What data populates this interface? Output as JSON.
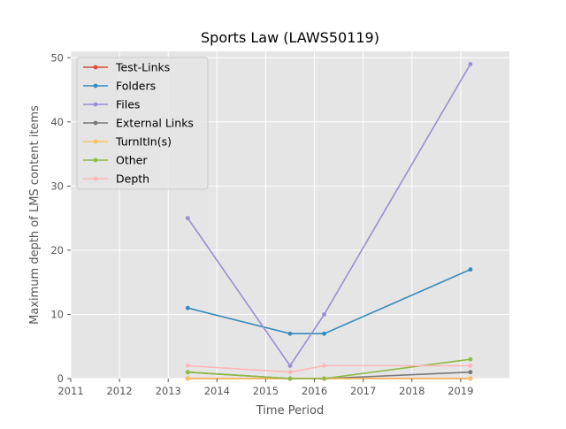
{
  "chart_data": {
    "type": "line",
    "title": "Sports Law (LAWS50119)",
    "xlabel": "Time Period",
    "ylabel": "Maximum depth of LMS content items",
    "xlim": [
      2011,
      2020
    ],
    "ylim": [
      0,
      51
    ],
    "x_ticks": [
      "2011",
      "2012",
      "2013",
      "2014",
      "2015",
      "2016",
      "2017",
      "2018",
      "2019"
    ],
    "y_ticks": [
      "0",
      "10",
      "20",
      "30",
      "40",
      "50"
    ],
    "x": [
      2013.4,
      2015.5,
      2016.2,
      2019.2
    ],
    "grid": true,
    "legend_position": "upper-left",
    "series": [
      {
        "name": "Test-Links",
        "color": "#e24a33",
        "values": [
          0,
          0,
          0,
          0
        ]
      },
      {
        "name": "Folders",
        "color": "#348abd",
        "values": [
          11,
          7,
          7,
          17
        ]
      },
      {
        "name": "Files",
        "color": "#988ed5",
        "values": [
          25,
          2,
          10,
          49
        ]
      },
      {
        "name": "External Links",
        "color": "#777777",
        "values": [
          1,
          0,
          0,
          1
        ]
      },
      {
        "name": "TurnItIn(s)",
        "color": "#fbc15e",
        "values": [
          0,
          0,
          0,
          0
        ]
      },
      {
        "name": "Other",
        "color": "#8eba42",
        "values": [
          1,
          0,
          0,
          3
        ]
      },
      {
        "name": "Depth",
        "color": "#ffb5b8",
        "values": [
          2,
          1,
          2,
          2
        ]
      }
    ]
  }
}
